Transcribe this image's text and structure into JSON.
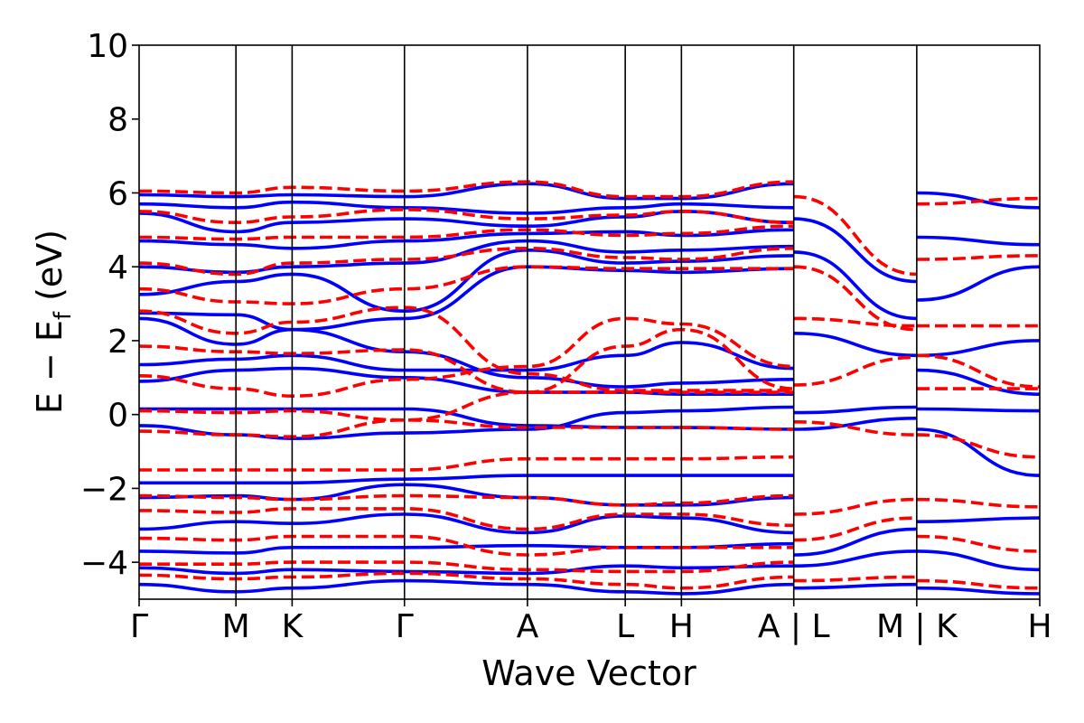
{
  "chart_data": {
    "type": "line",
    "title": "",
    "xlabel": "Wave Vector",
    "ylabel": {
      "main": "E − E",
      "sub": "f",
      "unit": " (eV)"
    },
    "ylim": [
      -5,
      10
    ],
    "yticks": [
      -4,
      -2,
      0,
      2,
      4,
      6,
      8,
      10
    ],
    "ytick_labels": [
      "−4",
      "−2",
      "0",
      "2",
      "4",
      "6",
      "8",
      "10"
    ],
    "xlim": [
      0,
      9.3
    ],
    "kpoints": [
      {
        "label": "Γ",
        "x": 0.0
      },
      {
        "label": "M",
        "x": 1.0
      },
      {
        "label": "K",
        "x": 1.58
      },
      {
        "label": "Γ",
        "x": 2.74
      },
      {
        "label": "A",
        "x": 4.01
      },
      {
        "label": "L",
        "x": 5.02
      },
      {
        "label": "H",
        "x": 5.6
      },
      {
        "label": "A | L",
        "x": 6.76
      },
      {
        "label": "M | K",
        "x": 8.03
      },
      {
        "label": "H",
        "x": 9.3
      }
    ],
    "grid": false,
    "legend": null,
    "series_styles": [
      {
        "color": "#0000ff",
        "dash": "solid"
      },
      {
        "color": "#ff0000",
        "dash": "dashed"
      }
    ],
    "series": [
      {
        "style": 0,
        "x": [
          0,
          1,
          1.58,
          2.74,
          4.01,
          5.02,
          5.6,
          6.76
        ],
        "values": [
          0.15,
          0.15,
          0.15,
          0.15,
          -0.3,
          -0.35,
          -0.35,
          -0.4
        ]
      },
      {
        "style": 0,
        "x": [
          0,
          1,
          1.58,
          2.74,
          4.01,
          5.02,
          5.6,
          6.76
        ],
        "values": [
          -0.3,
          -0.55,
          -0.65,
          -0.5,
          -0.4,
          0.05,
          0.1,
          0.2
        ]
      },
      {
        "style": 0,
        "x": [
          0,
          1,
          1.58,
          2.74,
          4.01,
          5.02,
          5.6,
          6.76
        ],
        "values": [
          -1.85,
          -1.85,
          -1.85,
          -1.75,
          -1.65,
          -1.65,
          -1.65,
          -1.65
        ]
      },
      {
        "style": 0,
        "x": [
          0,
          1,
          1.58,
          2.74,
          4.01,
          5.02,
          5.6,
          6.76
        ],
        "values": [
          -2.25,
          -2.2,
          -2.3,
          -1.9,
          -2.25,
          -2.45,
          -2.45,
          -2.25
        ]
      },
      {
        "style": 0,
        "x": [
          0,
          1,
          1.58,
          2.74,
          4.01,
          5.02,
          5.6,
          6.76
        ],
        "values": [
          -3.1,
          -2.9,
          -2.95,
          -2.7,
          -3.2,
          -2.75,
          -2.8,
          -3.2
        ]
      },
      {
        "style": 0,
        "x": [
          0,
          1,
          1.58,
          2.74,
          4.01,
          5.02,
          5.6,
          6.76
        ],
        "values": [
          -3.7,
          -3.75,
          -3.6,
          -3.6,
          -3.55,
          -3.6,
          -3.6,
          -3.5
        ]
      },
      {
        "style": 0,
        "x": [
          0,
          1,
          1.58,
          2.74,
          4.01,
          5.02,
          5.6,
          6.76
        ],
        "values": [
          -4.15,
          -4.3,
          -4.2,
          -4.25,
          -4.3,
          -4.1,
          -4.15,
          -4.1
        ]
      },
      {
        "style": 0,
        "x": [
          0,
          1,
          1.58,
          2.74,
          4.01,
          5.02,
          5.6,
          6.76
        ],
        "values": [
          -4.6,
          -4.8,
          -4.7,
          -4.5,
          -4.6,
          -4.8,
          -4.85,
          -4.6
        ]
      },
      {
        "style": 0,
        "x": [
          0,
          1,
          1.58,
          2.74,
          4.01,
          5.02,
          5.6,
          6.76
        ],
        "values": [
          0.9,
          1.2,
          1.25,
          1.0,
          0.6,
          0.6,
          0.55,
          0.55
        ]
      },
      {
        "style": 0,
        "x": [
          0,
          1,
          1.58,
          2.74,
          4.01,
          5.02,
          5.6,
          6.76
        ],
        "values": [
          1.35,
          1.5,
          1.6,
          1.2,
          1.2,
          1.6,
          1.95,
          1.25
        ]
      },
      {
        "style": 0,
        "x": [
          0,
          1,
          1.58,
          2.74,
          4.01,
          5.02,
          5.6,
          6.76
        ],
        "values": [
          2.6,
          1.9,
          2.3,
          1.7,
          1.0,
          0.75,
          0.85,
          0.95
        ]
      },
      {
        "style": 0,
        "x": [
          0,
          1,
          1.58,
          2.74,
          4.01,
          5.02,
          5.6,
          6.76
        ],
        "values": [
          2.75,
          2.7,
          2.3,
          2.6,
          4.0,
          3.9,
          3.85,
          3.95
        ]
      },
      {
        "style": 0,
        "x": [
          0,
          1,
          1.58,
          2.74,
          4.01,
          5.02,
          5.6,
          6.76
        ],
        "values": [
          3.25,
          3.6,
          3.8,
          2.8,
          4.45,
          4.1,
          4.15,
          4.3
        ]
      },
      {
        "style": 0,
        "x": [
          0,
          1,
          1.58,
          2.74,
          4.01,
          5.02,
          5.6,
          6.76
        ],
        "values": [
          4.0,
          3.85,
          4.0,
          4.1,
          4.7,
          4.4,
          4.45,
          4.55
        ]
      },
      {
        "style": 0,
        "x": [
          0,
          1,
          1.58,
          2.74,
          4.01,
          5.02,
          5.6,
          6.76
        ],
        "values": [
          4.7,
          4.6,
          4.5,
          4.7,
          4.9,
          4.95,
          4.85,
          5.0
        ]
      },
      {
        "style": 0,
        "x": [
          0,
          1,
          1.58,
          2.74,
          4.01,
          5.02,
          5.6,
          6.76
        ],
        "values": [
          5.45,
          4.95,
          5.2,
          5.3,
          5.1,
          5.35,
          5.5,
          5.2
        ]
      },
      {
        "style": 0,
        "x": [
          0,
          1,
          1.58,
          2.74,
          4.01,
          5.02,
          5.6,
          6.76
        ],
        "values": [
          5.7,
          5.6,
          5.75,
          5.6,
          5.45,
          5.6,
          5.7,
          5.6
        ]
      },
      {
        "style": 0,
        "x": [
          0,
          1,
          1.58,
          2.74,
          4.01,
          5.02,
          5.6,
          6.76
        ],
        "values": [
          5.95,
          5.9,
          5.95,
          5.9,
          6.25,
          5.85,
          5.85,
          6.25
        ]
      },
      {
        "style": 0,
        "x": [
          6.76,
          8.03
        ],
        "values": [
          0.05,
          0.2
        ]
      },
      {
        "style": 0,
        "x": [
          6.76,
          8.03
        ],
        "values": [
          -0.4,
          -0.1
        ]
      },
      {
        "style": 0,
        "x": [
          6.76,
          8.03
        ],
        "values": [
          2.2,
          1.6
        ]
      },
      {
        "style": 0,
        "x": [
          6.76,
          8.03
        ],
        "values": [
          4.4,
          2.6
        ]
      },
      {
        "style": 0,
        "x": [
          6.76,
          8.03
        ],
        "values": [
          5.3,
          3.6
        ]
      },
      {
        "style": 0,
        "x": [
          6.76,
          8.03
        ],
        "values": [
          -3.8,
          -3.1
        ]
      },
      {
        "style": 0,
        "x": [
          6.76,
          8.03
        ],
        "values": [
          -4.1,
          -3.7
        ]
      },
      {
        "style": 0,
        "x": [
          6.76,
          8.03
        ],
        "values": [
          -4.7,
          -4.6
        ]
      },
      {
        "style": 0,
        "x": [
          8.03,
          9.3
        ],
        "values": [
          0.15,
          0.1
        ]
      },
      {
        "style": 0,
        "x": [
          8.03,
          9.3
        ],
        "values": [
          -0.4,
          -1.65
        ]
      },
      {
        "style": 0,
        "x": [
          8.03,
          9.3
        ],
        "values": [
          1.6,
          2.0
        ]
      },
      {
        "style": 0,
        "x": [
          8.03,
          9.3
        ],
        "values": [
          1.2,
          0.55
        ]
      },
      {
        "style": 0,
        "x": [
          8.03,
          9.3
        ],
        "values": [
          3.1,
          4.0
        ]
      },
      {
        "style": 0,
        "x": [
          8.03,
          9.3
        ],
        "values": [
          4.8,
          4.6
        ]
      },
      {
        "style": 0,
        "x": [
          8.03,
          9.3
        ],
        "values": [
          6.0,
          5.6
        ]
      },
      {
        "style": 0,
        "x": [
          8.03,
          9.3
        ],
        "values": [
          -2.9,
          -2.8
        ]
      },
      {
        "style": 0,
        "x": [
          8.03,
          9.3
        ],
        "values": [
          -3.7,
          -4.2
        ]
      },
      {
        "style": 0,
        "x": [
          8.03,
          9.3
        ],
        "values": [
          -4.7,
          -4.85
        ]
      },
      {
        "style": 1,
        "x": [
          0,
          1,
          1.58,
          2.74,
          4.01,
          5.02,
          5.6,
          6.76
        ],
        "values": [
          0.1,
          0.05,
          0.1,
          -0.15,
          0.6,
          0.6,
          0.6,
          0.6
        ]
      },
      {
        "style": 1,
        "x": [
          0,
          1,
          1.58,
          2.74,
          4.01,
          5.02,
          5.6,
          6.76
        ],
        "values": [
          -0.45,
          -0.55,
          -0.6,
          -0.15,
          -0.35,
          -0.35,
          -0.35,
          -0.4
        ]
      },
      {
        "style": 1,
        "x": [
          0,
          1,
          1.58,
          2.74,
          4.01,
          5.02,
          5.6,
          6.76
        ],
        "values": [
          -1.5,
          -1.5,
          -1.5,
          -1.5,
          -1.2,
          -1.2,
          -1.2,
          -1.15
        ]
      },
      {
        "style": 1,
        "x": [
          0,
          1,
          1.58,
          2.74,
          4.01,
          5.02,
          5.6,
          6.76
        ],
        "values": [
          -2.2,
          -2.25,
          -2.3,
          -2.2,
          -2.25,
          -2.45,
          -2.4,
          -2.2
        ]
      },
      {
        "style": 1,
        "x": [
          0,
          1,
          1.58,
          2.74,
          4.01,
          5.02,
          5.6,
          6.76
        ],
        "values": [
          -2.6,
          -2.65,
          -2.55,
          -2.55,
          -3.1,
          -2.7,
          -2.7,
          -3.0
        ]
      },
      {
        "style": 1,
        "x": [
          0,
          1,
          1.58,
          2.74,
          4.01,
          5.02,
          5.6,
          6.76
        ],
        "values": [
          -3.35,
          -3.4,
          -3.3,
          -3.3,
          -3.8,
          -3.6,
          -3.6,
          -3.6
        ]
      },
      {
        "style": 1,
        "x": [
          0,
          1,
          1.58,
          2.74,
          4.01,
          5.02,
          5.6,
          6.76
        ],
        "values": [
          -4.05,
          -4.05,
          -4.0,
          -4.0,
          -4.2,
          -4.25,
          -4.25,
          -4.0
        ]
      },
      {
        "style": 1,
        "x": [
          0,
          1,
          1.58,
          2.74,
          4.01,
          5.02,
          5.6,
          6.76
        ],
        "values": [
          -4.35,
          -4.45,
          -4.4,
          -4.3,
          -4.45,
          -4.6,
          -4.7,
          -4.4
        ]
      },
      {
        "style": 1,
        "x": [
          0,
          1,
          1.58,
          2.74,
          4.01,
          5.02,
          5.6,
          6.76
        ],
        "values": [
          1.05,
          0.7,
          0.5,
          0.95,
          1.3,
          2.6,
          2.45,
          1.3
        ]
      },
      {
        "style": 1,
        "x": [
          0,
          1,
          1.58,
          2.74,
          4.01,
          5.02,
          5.6,
          6.76
        ],
        "values": [
          1.85,
          1.7,
          1.65,
          1.75,
          0.6,
          1.85,
          2.3,
          0.7
        ]
      },
      {
        "style": 1,
        "x": [
          0,
          1,
          1.58,
          2.74,
          4.01,
          5.02,
          5.6,
          6.76
        ],
        "values": [
          2.8,
          2.2,
          2.5,
          2.9,
          1.1,
          0.65,
          0.65,
          0.65
        ]
      },
      {
        "style": 1,
        "x": [
          0,
          1,
          1.58,
          2.74,
          4.01,
          5.02,
          5.6,
          6.76
        ],
        "values": [
          3.4,
          3.05,
          3.0,
          3.4,
          4.0,
          3.95,
          3.95,
          3.95
        ]
      },
      {
        "style": 1,
        "x": [
          0,
          1,
          1.58,
          2.74,
          4.01,
          5.02,
          5.6,
          6.76
        ],
        "values": [
          4.1,
          3.8,
          4.1,
          4.2,
          4.5,
          4.25,
          4.2,
          4.5
        ]
      },
      {
        "style": 1,
        "x": [
          0,
          1,
          1.58,
          2.74,
          4.01,
          5.02,
          5.6,
          6.76
        ],
        "values": [
          4.8,
          4.75,
          4.8,
          4.8,
          5.0,
          4.85,
          4.9,
          5.1
        ]
      },
      {
        "style": 1,
        "x": [
          0,
          1,
          1.58,
          2.74,
          4.01,
          5.02,
          5.6,
          6.76
        ],
        "values": [
          5.5,
          5.2,
          5.35,
          5.55,
          5.3,
          5.4,
          5.5,
          5.2
        ]
      },
      {
        "style": 1,
        "x": [
          0,
          1,
          1.58,
          2.74,
          4.01,
          5.02,
          5.6,
          6.76
        ],
        "values": [
          6.05,
          6.0,
          6.15,
          6.05,
          6.3,
          5.9,
          5.9,
          6.3
        ]
      },
      {
        "style": 1,
        "x": [
          6.76,
          8.03
        ],
        "values": [
          0.8,
          1.55
        ]
      },
      {
        "style": 1,
        "x": [
          6.76,
          8.03
        ],
        "values": [
          -0.2,
          -0.55
        ]
      },
      {
        "style": 1,
        "x": [
          6.76,
          8.03
        ],
        "values": [
          2.6,
          2.4
        ]
      },
      {
        "style": 1,
        "x": [
          6.76,
          8.03
        ],
        "values": [
          4.0,
          2.3
        ]
      },
      {
        "style": 1,
        "x": [
          6.76,
          8.03
        ],
        "values": [
          5.9,
          3.8
        ]
      },
      {
        "style": 1,
        "x": [
          6.76,
          8.03
        ],
        "values": [
          -2.7,
          -2.3
        ]
      },
      {
        "style": 1,
        "x": [
          6.76,
          8.03
        ],
        "values": [
          -3.4,
          -2.8
        ]
      },
      {
        "style": 1,
        "x": [
          6.76,
          8.03
        ],
        "values": [
          -4.5,
          -4.4
        ]
      },
      {
        "style": 1,
        "x": [
          8.03,
          9.3
        ],
        "values": [
          0.7,
          0.7
        ]
      },
      {
        "style": 1,
        "x": [
          8.03,
          9.3
        ],
        "values": [
          -0.55,
          -1.15
        ]
      },
      {
        "style": 1,
        "x": [
          8.03,
          9.3
        ],
        "values": [
          2.4,
          2.4
        ]
      },
      {
        "style": 1,
        "x": [
          8.03,
          9.3
        ],
        "values": [
          1.6,
          0.75
        ]
      },
      {
        "style": 1,
        "x": [
          8.03,
          9.3
        ],
        "values": [
          4.2,
          4.3
        ]
      },
      {
        "style": 1,
        "x": [
          8.03,
          9.3
        ],
        "values": [
          5.7,
          5.85
        ]
      },
      {
        "style": 1,
        "x": [
          8.03,
          9.3
        ],
        "values": [
          -2.3,
          -2.5
        ]
      },
      {
        "style": 1,
        "x": [
          8.03,
          9.3
        ],
        "values": [
          -3.3,
          -3.7
        ]
      },
      {
        "style": 1,
        "x": [
          8.03,
          9.3
        ],
        "values": [
          -4.5,
          -4.7
        ]
      }
    ]
  }
}
